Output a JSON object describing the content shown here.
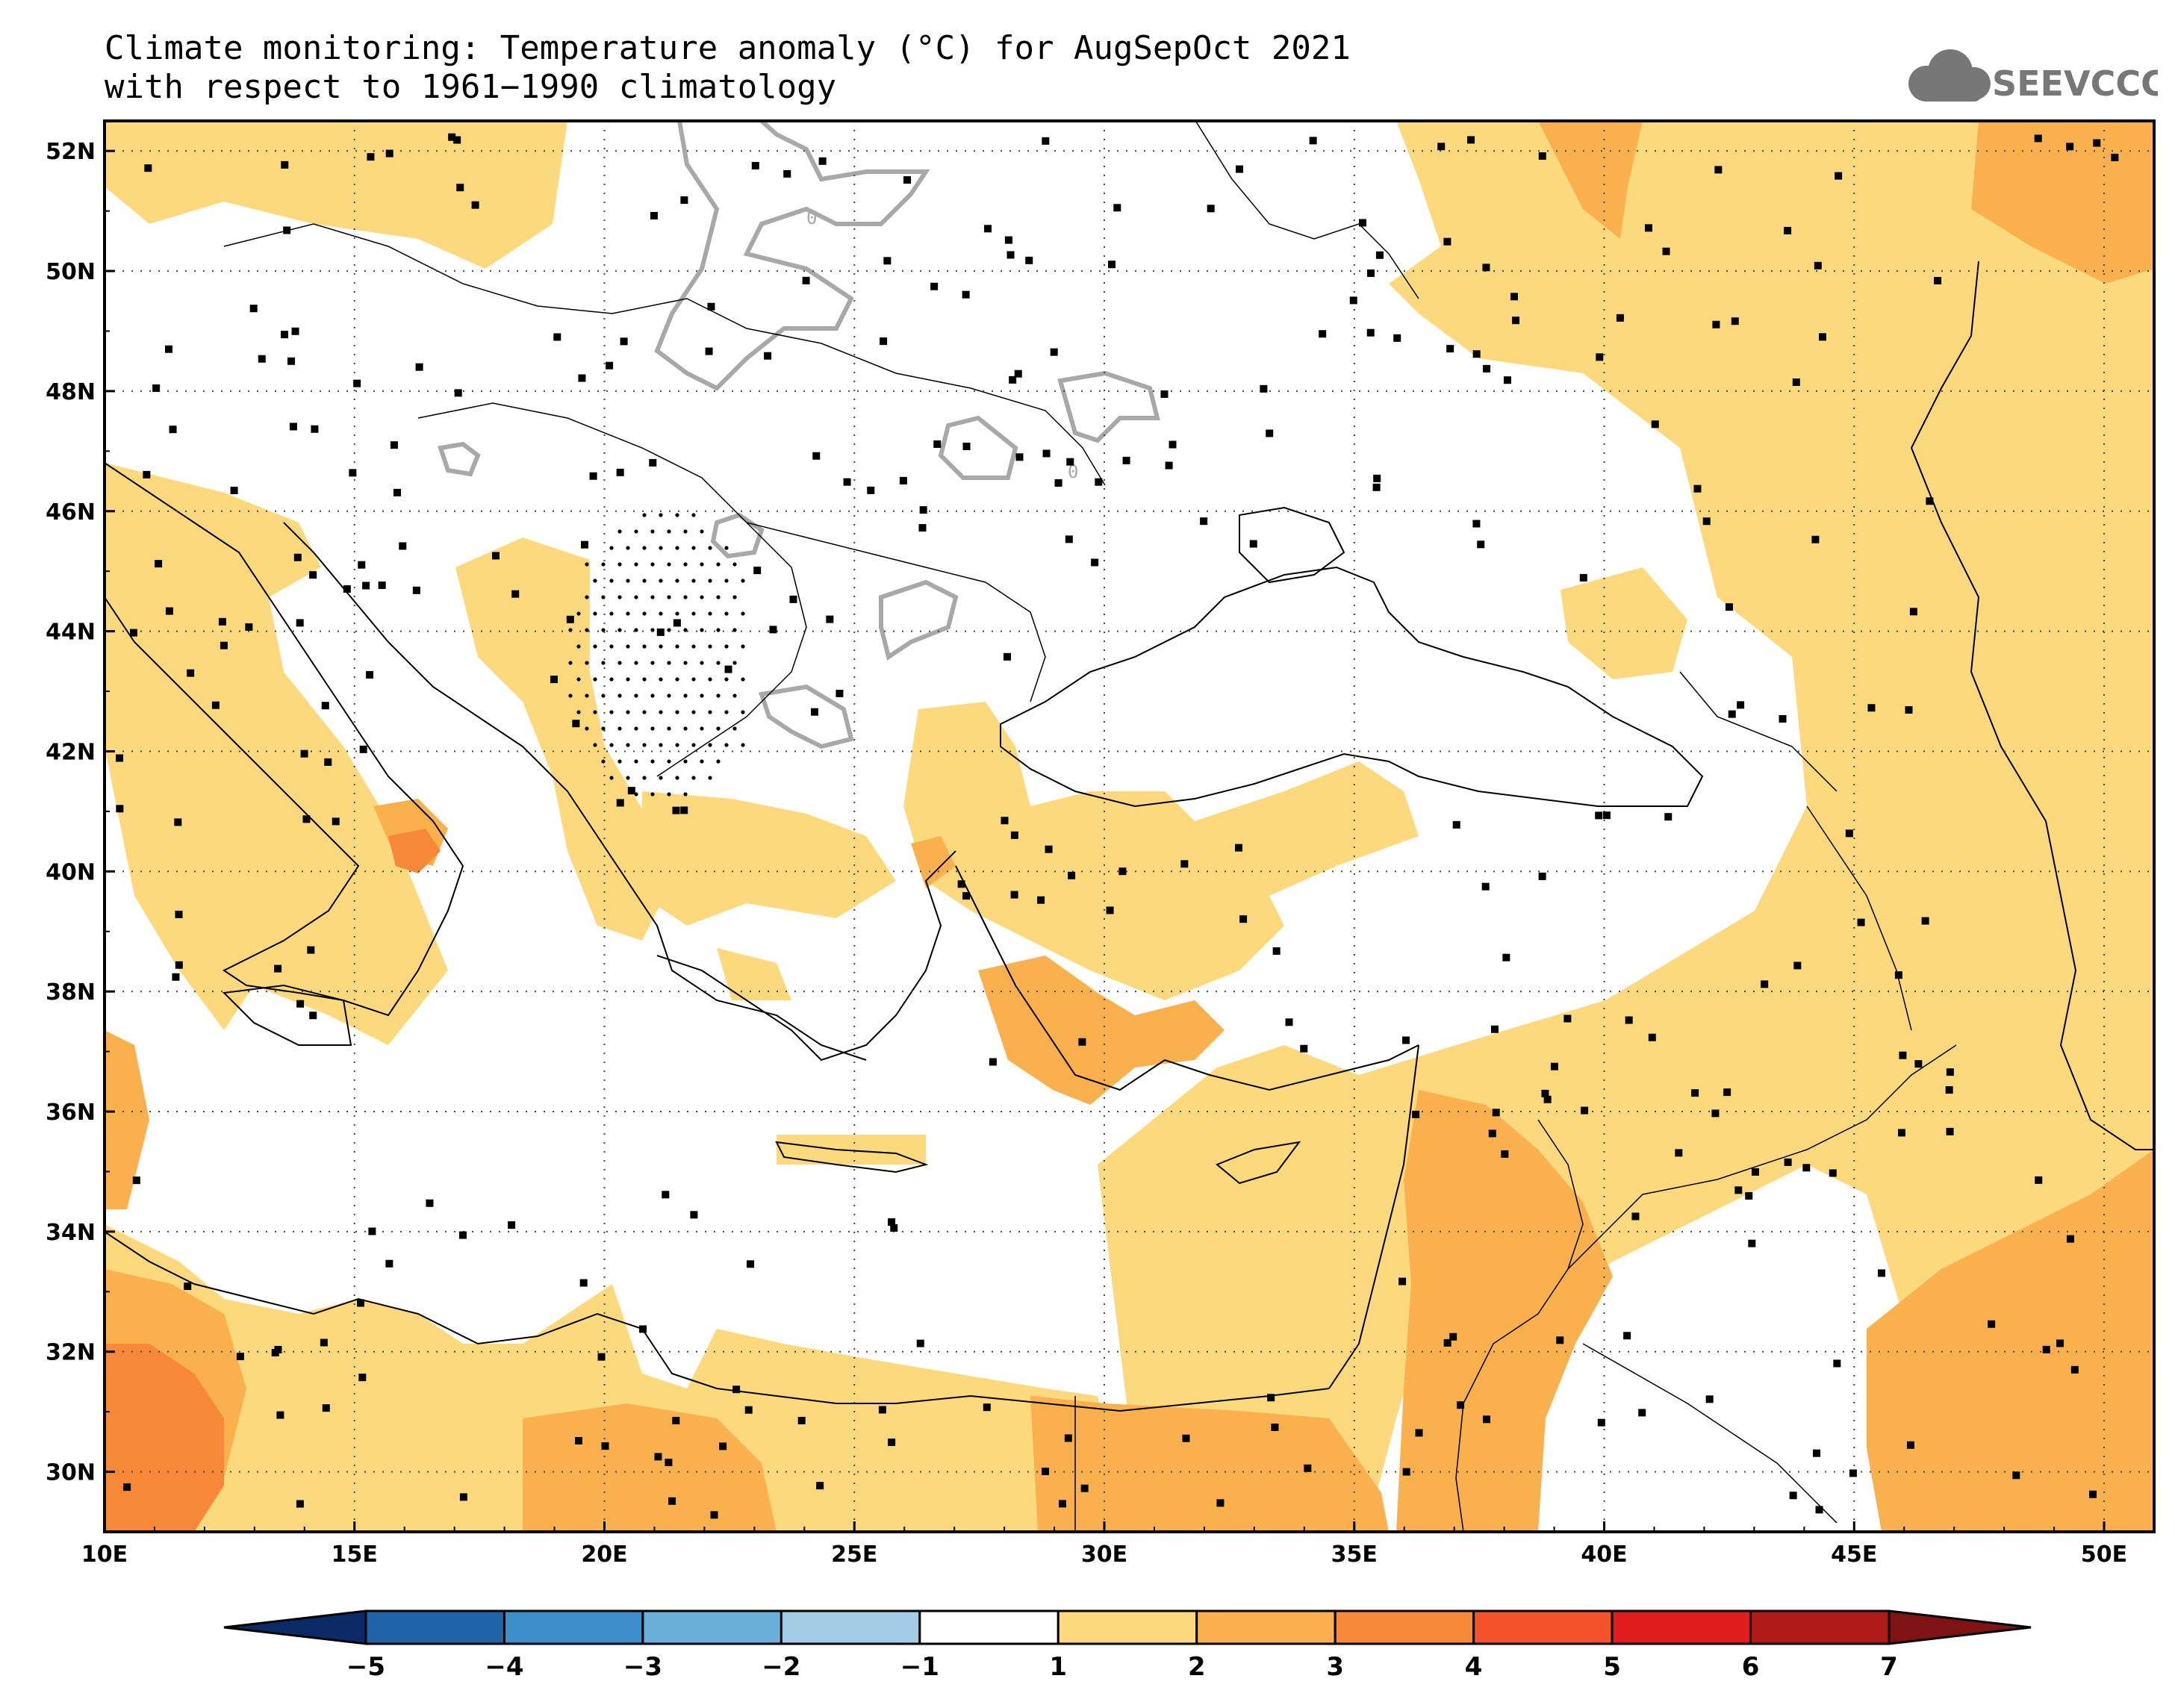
{
  "title": {
    "line1": "Climate monitoring: Temperature anomaly (°C) for AugSepOct 2021",
    "line2": "with respect to 1961−1990 climatology"
  },
  "logo": {
    "text": "SEEVCCC",
    "icon": "cloud-icon"
  },
  "map": {
    "lon_range": [
      10,
      51
    ],
    "lat_range": [
      29,
      52.5
    ],
    "lon_ticks": [
      {
        "value": 10,
        "label": "10E"
      },
      {
        "value": 15,
        "label": "15E"
      },
      {
        "value": 20,
        "label": "20E"
      },
      {
        "value": 25,
        "label": "25E"
      },
      {
        "value": 30,
        "label": "30E"
      },
      {
        "value": 35,
        "label": "35E"
      },
      {
        "value": 40,
        "label": "40E"
      },
      {
        "value": 45,
        "label": "45E"
      },
      {
        "value": 50,
        "label": "50E"
      }
    ],
    "lat_ticks": [
      {
        "value": 30,
        "label": "30N"
      },
      {
        "value": 32,
        "label": "32N"
      },
      {
        "value": 34,
        "label": "34N"
      },
      {
        "value": 36,
        "label": "36N"
      },
      {
        "value": 38,
        "label": "38N"
      },
      {
        "value": 40,
        "label": "40N"
      },
      {
        "value": 42,
        "label": "42N"
      },
      {
        "value": 44,
        "label": "44N"
      },
      {
        "value": 46,
        "label": "46N"
      },
      {
        "value": 48,
        "label": "48N"
      },
      {
        "value": 50,
        "label": "50N"
      },
      {
        "value": 52,
        "label": "52N"
      }
    ],
    "grid": "dotted",
    "contour_label": "0"
  },
  "colorbar": {
    "colors": [
      "#0b2a66",
      "#1f64a8",
      "#3d8fcc",
      "#6aafd8",
      "#a3cde6",
      "#ffffff",
      "#fdd97e",
      "#f9b04d",
      "#f78838",
      "#f4532c",
      "#e21d1d",
      "#b21a1a",
      "#7f1212"
    ],
    "labels": [
      "−5",
      "−4",
      "−3",
      "−2",
      "−1",
      "1",
      "2",
      "3",
      "4",
      "5",
      "6",
      "7"
    ]
  }
}
